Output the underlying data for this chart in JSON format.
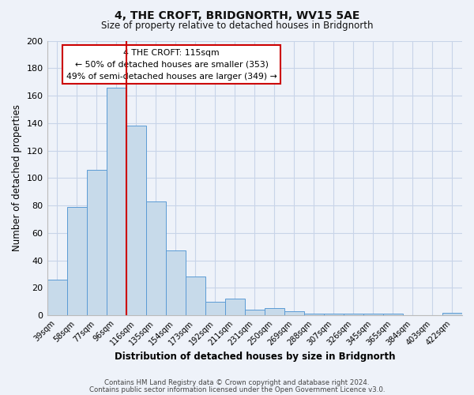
{
  "title": "4, THE CROFT, BRIDGNORTH, WV15 5AE",
  "subtitle": "Size of property relative to detached houses in Bridgnorth",
  "xlabel": "Distribution of detached houses by size in Bridgnorth",
  "ylabel": "Number of detached properties",
  "bar_labels": [
    "39sqm",
    "58sqm",
    "77sqm",
    "96sqm",
    "116sqm",
    "135sqm",
    "154sqm",
    "173sqm",
    "192sqm",
    "211sqm",
    "231sqm",
    "250sqm",
    "269sqm",
    "288sqm",
    "307sqm",
    "326sqm",
    "345sqm",
    "365sqm",
    "384sqm",
    "403sqm",
    "422sqm"
  ],
  "bar_values": [
    26,
    79,
    106,
    166,
    138,
    83,
    47,
    28,
    10,
    12,
    4,
    5,
    3,
    1,
    1,
    1,
    1,
    1,
    0,
    0,
    2
  ],
  "bar_color": "#c7daea",
  "bar_edge_color": "#5b9bd5",
  "grid_color": "#c8d4e8",
  "background_color": "#eef2f9",
  "vline_color": "#cc0000",
  "vline_position": 3.5,
  "annotation_title": "4 THE CROFT: 115sqm",
  "annotation_line1": "← 50% of detached houses are smaller (353)",
  "annotation_line2": "49% of semi-detached houses are larger (349) →",
  "annotation_box_facecolor": "#ffffff",
  "annotation_box_edgecolor": "#cc0000",
  "ylim": [
    0,
    200
  ],
  "yticks": [
    0,
    20,
    40,
    60,
    80,
    100,
    120,
    140,
    160,
    180,
    200
  ],
  "footer1": "Contains HM Land Registry data © Crown copyright and database right 2024.",
  "footer2": "Contains public sector information licensed under the Open Government Licence v3.0."
}
